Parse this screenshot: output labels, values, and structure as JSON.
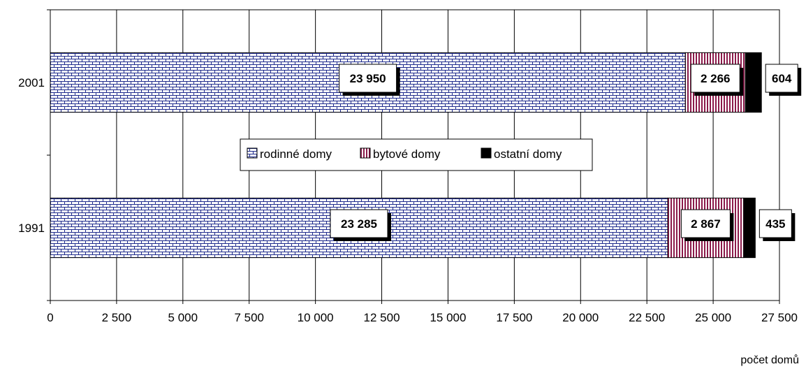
{
  "chart_data": {
    "type": "bar",
    "orientation": "horizontal",
    "stacked": true,
    "categories": [
      "2001",
      "1991"
    ],
    "series": [
      {
        "name": "rodinné domy",
        "values": [
          23950,
          23285
        ],
        "labels": [
          "23 950",
          "23 285"
        ],
        "color": "#1e2a8c",
        "pattern": "brick"
      },
      {
        "name": "bytové domy",
        "values": [
          2266,
          2867
        ],
        "labels": [
          "2 266",
          "2 867"
        ],
        "color": "#8b1a4a",
        "pattern": "vertical-stripes"
      },
      {
        "name": "ostatní domy",
        "values": [
          604,
          435
        ],
        "labels": [
          "604",
          "435"
        ],
        "color": "#000000",
        "pattern": "solid"
      }
    ],
    "xlim": [
      0,
      27500
    ],
    "xticks": [
      0,
      2500,
      5000,
      7500,
      10000,
      12500,
      15000,
      17500,
      20000,
      22500,
      25000,
      27500
    ],
    "xtick_labels": [
      "0",
      "2 500",
      "5 000",
      "7 500",
      "10 000",
      "12 500",
      "15 000",
      "17 500",
      "20 000",
      "22 500",
      "25 000",
      "27 500"
    ],
    "xlabel": "počet domů",
    "title": "",
    "grid": "vertical",
    "legend": "center"
  }
}
